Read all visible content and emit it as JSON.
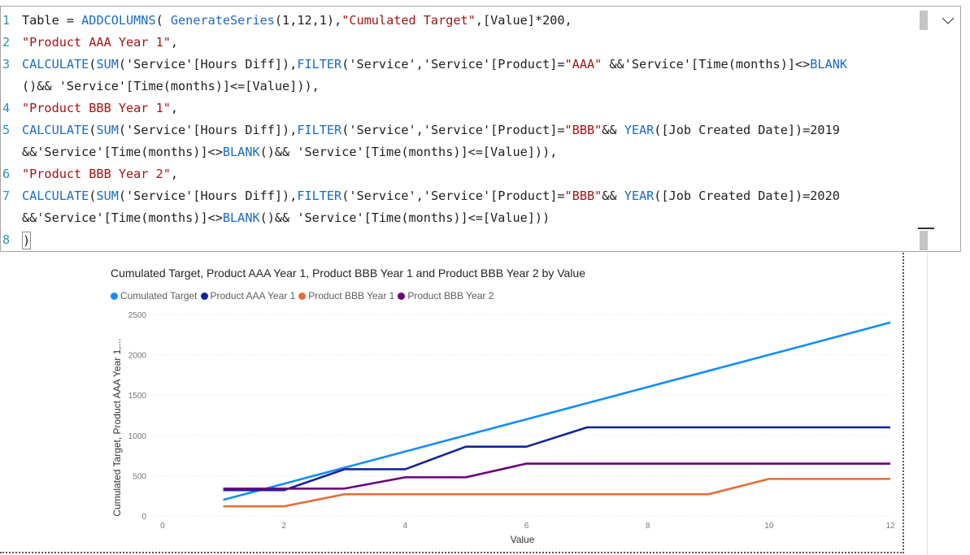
{
  "editor": {
    "lines": [
      {
        "num": "1",
        "parts": [
          [
            "t",
            "Table = "
          ],
          [
            "f",
            "ADDCOLUMNS"
          ],
          [
            "t",
            "( "
          ],
          [
            "f",
            "GenerateSeries"
          ],
          [
            "t",
            "(1,12,1),"
          ],
          [
            "s",
            "\"Cumulated Target\""
          ],
          [
            "t",
            ",[Value]*200,"
          ]
        ]
      },
      {
        "num": "2",
        "parts": [
          [
            "s",
            "\"Product AAA Year 1\""
          ],
          [
            "t",
            ","
          ]
        ]
      },
      {
        "num": "3",
        "parts": [
          [
            "f",
            "CALCULATE"
          ],
          [
            "t",
            "("
          ],
          [
            "f",
            "SUM"
          ],
          [
            "t",
            "('Service'[Hours Diff]),"
          ],
          [
            "f",
            "FILTER"
          ],
          [
            "t",
            "('Service','Service'[Product]="
          ],
          [
            "s",
            "\"AAA\""
          ],
          [
            "t",
            " &&'Service'[Time(months)]<>"
          ],
          [
            "f",
            "BLANK"
          ]
        ]
      },
      {
        "num": "",
        "parts": [
          [
            "t",
            "()&& 'Service'[Time(months)]<=[Value])),"
          ]
        ]
      },
      {
        "num": "4",
        "parts": [
          [
            "s",
            "\"Product BBB Year 1\""
          ],
          [
            "t",
            ","
          ]
        ]
      },
      {
        "num": "5",
        "parts": [
          [
            "f",
            "CALCULATE"
          ],
          [
            "t",
            "("
          ],
          [
            "f",
            "SUM"
          ],
          [
            "t",
            "('Service'[Hours Diff]),"
          ],
          [
            "f",
            "FILTER"
          ],
          [
            "t",
            "('Service','Service'[Product]="
          ],
          [
            "s",
            "\"BBB\""
          ],
          [
            "t",
            "&& "
          ],
          [
            "f",
            "YEAR"
          ],
          [
            "t",
            "([Job Created Date])=2019"
          ]
        ]
      },
      {
        "num": "",
        "parts": [
          [
            "t",
            "&&'Service'[Time(months)]<>"
          ],
          [
            "f",
            "BLANK"
          ],
          [
            "t",
            "()&& 'Service'[Time(months)]<=[Value])),"
          ]
        ]
      },
      {
        "num": "6",
        "parts": [
          [
            "s",
            "\"Product BBB Year 2\""
          ],
          [
            "t",
            ","
          ]
        ]
      },
      {
        "num": "7",
        "parts": [
          [
            "f",
            "CALCULATE"
          ],
          [
            "t",
            "("
          ],
          [
            "f",
            "SUM"
          ],
          [
            "t",
            "('Service'[Hours Diff]),"
          ],
          [
            "f",
            "FILTER"
          ],
          [
            "t",
            "('Service','Service'[Product]="
          ],
          [
            "s",
            "\"BBB\""
          ],
          [
            "t",
            "&& "
          ],
          [
            "f",
            "YEAR"
          ],
          [
            "t",
            "([Job Created Date])=2020"
          ]
        ]
      },
      {
        "num": "",
        "parts": [
          [
            "t",
            "&&'Service'[Time(months)]<>"
          ],
          [
            "f",
            "BLANK"
          ],
          [
            "t",
            "()&& 'Service'[Time(months)]<=[Value]))"
          ]
        ]
      },
      {
        "num": "8",
        "parts": [
          [
            "c",
            ")"
          ]
        ]
      }
    ],
    "collapse_icon": "chevron-down-icon"
  },
  "chart_data": {
    "type": "line",
    "title": "Cumulated Target, Product AAA Year 1, Product BBB Year 1 and Product BBB Year 2 by Value",
    "xlabel": "Value",
    "ylabel": "Cumulated Target, Product AAA Year 1,...",
    "xlim": [
      0,
      12
    ],
    "ylim": [
      0,
      2500
    ],
    "xticks": [
      0,
      2,
      4,
      6,
      8,
      10,
      12
    ],
    "yticks": [
      0,
      500,
      1000,
      1500,
      2000,
      2500
    ],
    "grid": true,
    "legend_position": "top-left",
    "x": [
      1,
      2,
      3,
      4,
      5,
      6,
      7,
      8,
      9,
      10,
      11,
      12
    ],
    "series": [
      {
        "name": "Cumulated Target",
        "color": "#118dff",
        "values": [
          200,
          400,
          600,
          800,
          1000,
          1200,
          1400,
          1600,
          1800,
          2000,
          2200,
          2400
        ]
      },
      {
        "name": "Product AAA Year 1",
        "color": "#12239e",
        "values": [
          320,
          320,
          580,
          580,
          860,
          860,
          1100,
          1100,
          1100,
          1100,
          1100,
          1100
        ]
      },
      {
        "name": "Product BBB Year 1",
        "color": "#e66c37",
        "values": [
          120,
          120,
          270,
          270,
          270,
          270,
          270,
          270,
          270,
          460,
          460,
          460
        ]
      },
      {
        "name": "Product BBB Year 2",
        "color": "#6b007b",
        "values": [
          340,
          340,
          340,
          480,
          480,
          650,
          650,
          650,
          650,
          650,
          650,
          650
        ]
      }
    ]
  }
}
